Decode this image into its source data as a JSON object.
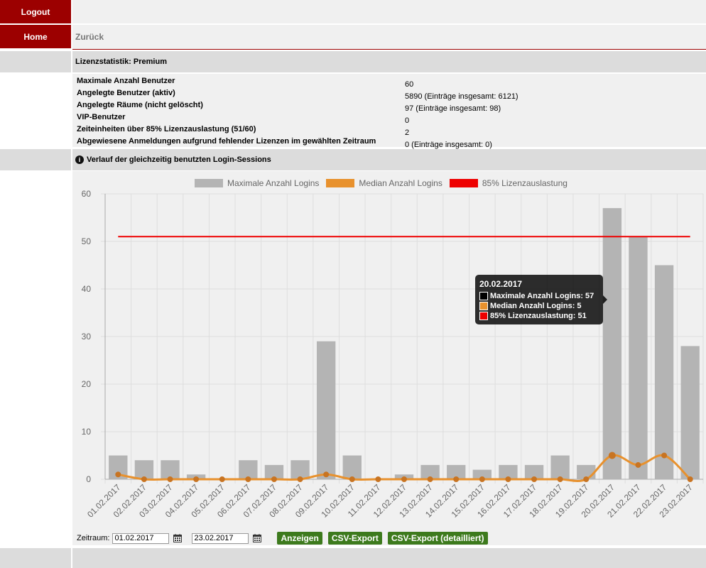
{
  "nav": {
    "logout": "Logout",
    "home": "Home",
    "back": "Zurück"
  },
  "section_title": "Lizenzstatistik: Premium",
  "stats": [
    {
      "label": "Maximale Anzahl Benutzer",
      "value": "60"
    },
    {
      "label": "Angelegte Benutzer (aktiv)",
      "value": "5890 (Einträge insgesamt: 6121)"
    },
    {
      "label": "Angelegte Räume (nicht gelöscht)",
      "value": "97 (Einträge insgesamt: 98)"
    },
    {
      "label": "VIP-Benutzer",
      "value": "0"
    },
    {
      "label": "Zeiteinheiten über 85% Lizenzauslastung (51/60)",
      "value": "2"
    },
    {
      "label": "Abgewiesene Anmeldungen aufgrund fehlender Lizenzen im gewählten Zeitraum",
      "value": "0 (Einträge insgesamt: 0)"
    }
  ],
  "chart_section_title": "Verlauf der gleichzeitig benutzten Login-Sessions",
  "chart_data": {
    "type": "bar",
    "categories": [
      "01.02.2017",
      "02.02.2017",
      "03.02.2017",
      "04.02.2017",
      "05.02.2017",
      "06.02.2017",
      "07.02.2017",
      "08.02.2017",
      "09.02.2017",
      "10.02.2017",
      "11.02.2017",
      "12.02.2017",
      "13.02.2017",
      "14.02.2017",
      "15.02.2017",
      "16.02.2017",
      "17.02.2017",
      "18.02.2017",
      "19.02.2017",
      "20.02.2017",
      "21.02.2017",
      "22.02.2017",
      "23.02.2017"
    ],
    "series": [
      {
        "name": "Maximale Anzahl Logins",
        "type": "bar",
        "color": "#b4b4b4",
        "values": [
          5,
          4,
          4,
          1,
          0,
          4,
          3,
          4,
          29,
          5,
          0,
          1,
          3,
          3,
          2,
          3,
          3,
          5,
          3,
          57,
          51,
          45,
          28
        ]
      },
      {
        "name": "Median Anzahl Logins",
        "type": "line",
        "color": "#e8912d",
        "values": [
          1,
          0,
          0,
          0,
          0,
          0,
          0,
          0,
          1,
          0,
          0,
          0,
          0,
          0,
          0,
          0,
          0,
          0,
          0,
          5,
          3,
          5,
          0
        ]
      },
      {
        "name": "85% Lizenzauslastung",
        "type": "line",
        "color": "#ee0000",
        "values": [
          51,
          51,
          51,
          51,
          51,
          51,
          51,
          51,
          51,
          51,
          51,
          51,
          51,
          51,
          51,
          51,
          51,
          51,
          51,
          51,
          51,
          51,
          51
        ]
      }
    ],
    "ylim": [
      0,
      60
    ],
    "yticks": [
      0,
      10,
      20,
      30,
      40,
      50,
      60
    ],
    "grid": true,
    "legend_position": "top"
  },
  "tooltip": {
    "title": "20.02.2017",
    "items": [
      {
        "text": "Maximale Anzahl Logins: 57",
        "color": "#000000"
      },
      {
        "text": "Median Anzahl Logins: 5",
        "color": "#e8912d"
      },
      {
        "text": "85% Lizenzauslastung: 51",
        "color": "#ee0000"
      }
    ]
  },
  "controls": {
    "zeitraum_label": "Zeitraum:",
    "from_date": "01.02.2017",
    "to_date": "23.02.2017",
    "show_button": "Anzeigen",
    "csv_button": "CSV-Export",
    "csv_detail_button": "CSV-Export (detailliert)"
  },
  "icons": {
    "calendar": "calendar-icon",
    "info": "info-icon"
  }
}
